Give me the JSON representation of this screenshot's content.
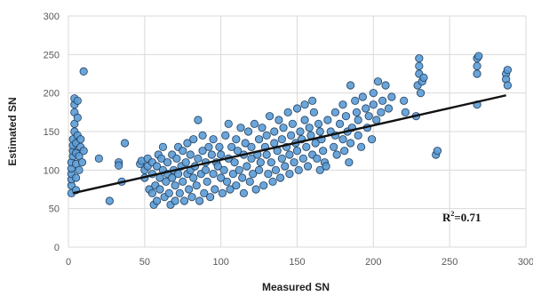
{
  "chart_data": {
    "type": "scatter",
    "title": "",
    "xlabel": "Measured SN",
    "ylabel": "Estimated SN",
    "xlim": [
      0,
      300
    ],
    "ylim": [
      0,
      300
    ],
    "xticks": [
      "0",
      "50",
      "100",
      "150",
      "200",
      "250",
      "300"
    ],
    "yticks": [
      "0",
      "50",
      "100",
      "150",
      "200",
      "250",
      "300"
    ],
    "grid": true,
    "legend": "none",
    "annotation": {
      "base": "R",
      "sup": "2",
      "rest": "=0.71"
    },
    "trendline": {
      "x": [
        3,
        287
      ],
      "y": [
        70,
        197
      ]
    },
    "series": [
      {
        "marker_color": "#5b9bd5",
        "marker_edge": "#1f3d5c",
        "points": [
          [
            2,
            70
          ],
          [
            2,
            80
          ],
          [
            2,
            88
          ],
          [
            2,
            95
          ],
          [
            2,
            102
          ],
          [
            2,
            110
          ],
          [
            3,
            118
          ],
          [
            3,
            125
          ],
          [
            3,
            132
          ],
          [
            3,
            140
          ],
          [
            4,
            150
          ],
          [
            4,
            160
          ],
          [
            4,
            175
          ],
          [
            4,
            185
          ],
          [
            4,
            193
          ],
          [
            5,
            74
          ],
          [
            5,
            90
          ],
          [
            5,
            108
          ],
          [
            5,
            122
          ],
          [
            5,
            135
          ],
          [
            6,
            145
          ],
          [
            6,
            168
          ],
          [
            6,
            190
          ],
          [
            7,
            100
          ],
          [
            7,
            118
          ],
          [
            8,
            130
          ],
          [
            8,
            140
          ],
          [
            9,
            110
          ],
          [
            10,
            228
          ],
          [
            10,
            125
          ],
          [
            20,
            115
          ],
          [
            27,
            60
          ],
          [
            33,
            110
          ],
          [
            33,
            106
          ],
          [
            35,
            85
          ],
          [
            37,
            135
          ],
          [
            47,
            108
          ],
          [
            48,
            112
          ],
          [
            50,
            100
          ],
          [
            50,
            90
          ],
          [
            52,
            105
          ],
          [
            52,
            115
          ],
          [
            53,
            75
          ],
          [
            55,
            70
          ],
          [
            55,
            95
          ],
          [
            55,
            110
          ],
          [
            56,
            55
          ],
          [
            57,
            80
          ],
          [
            58,
            60
          ],
          [
            58,
            105
          ],
          [
            59,
            120
          ],
          [
            60,
            75
          ],
          [
            60,
            90
          ],
          [
            61,
            115
          ],
          [
            62,
            130
          ],
          [
            62,
            100
          ],
          [
            63,
            65
          ],
          [
            64,
            85
          ],
          [
            65,
            95
          ],
          [
            65,
            110
          ],
          [
            66,
            70
          ],
          [
            67,
            55
          ],
          [
            68,
            90
          ],
          [
            68,
            120
          ],
          [
            69,
            100
          ],
          [
            70,
            80
          ],
          [
            70,
            60
          ],
          [
            71,
            115
          ],
          [
            72,
            95
          ],
          [
            72,
            130
          ],
          [
            73,
            70
          ],
          [
            74,
            105
          ],
          [
            75,
            85
          ],
          [
            75,
            125
          ],
          [
            76,
            60
          ],
          [
            77,
            110
          ],
          [
            78,
            95
          ],
          [
            78,
            135
          ],
          [
            79,
            75
          ],
          [
            80,
            100
          ],
          [
            80,
            120
          ],
          [
            81,
            65
          ],
          [
            82,
            90
          ],
          [
            82,
            140
          ],
          [
            83,
            105
          ],
          [
            84,
            80
          ],
          [
            85,
            115
          ],
          [
            85,
            165
          ],
          [
            86,
            60
          ],
          [
            87,
            95
          ],
          [
            88,
            125
          ],
          [
            88,
            145
          ],
          [
            89,
            70
          ],
          [
            90,
            100
          ],
          [
            90,
            110
          ],
          [
            91,
            85
          ],
          [
            92,
            130
          ],
          [
            93,
            65
          ],
          [
            94,
            120
          ],
          [
            95,
            95
          ],
          [
            95,
            140
          ],
          [
            96,
            75
          ],
          [
            97,
            110
          ],
          [
            98,
            105
          ],
          [
            99,
            130
          ],
          [
            100,
            90
          ],
          [
            100,
            120
          ],
          [
            101,
            70
          ],
          [
            102,
            100
          ],
          [
            103,
            145
          ],
          [
            104,
            85
          ],
          [
            105,
            115
          ],
          [
            105,
            160
          ],
          [
            106,
            75
          ],
          [
            107,
            130
          ],
          [
            108,
            95
          ],
          [
            109,
            110
          ],
          [
            110,
            140
          ],
          [
            110,
            80
          ],
          [
            111,
            125
          ],
          [
            112,
            100
          ],
          [
            113,
            155
          ],
          [
            114,
            90
          ],
          [
            115,
            120
          ],
          [
            115,
            70
          ],
          [
            116,
            135
          ],
          [
            117,
            105
          ],
          [
            118,
            150
          ],
          [
            119,
            85
          ],
          [
            120,
            115
          ],
          [
            120,
            130
          ],
          [
            121,
            95
          ],
          [
            122,
            160
          ],
          [
            123,
            75
          ],
          [
            124,
            120
          ],
          [
            125,
            140
          ],
          [
            125,
            100
          ],
          [
            126,
            110
          ],
          [
            127,
            155
          ],
          [
            128,
            80
          ],
          [
            129,
            130
          ],
          [
            130,
            120
          ],
          [
            130,
            145
          ],
          [
            131,
            95
          ],
          [
            132,
            170
          ],
          [
            133,
            110
          ],
          [
            134,
            85
          ],
          [
            135,
            135
          ],
          [
            135,
            150
          ],
          [
            136,
            100
          ],
          [
            137,
            125
          ],
          [
            138,
            165
          ],
          [
            139,
            90
          ],
          [
            140,
            140
          ],
          [
            140,
            115
          ],
          [
            141,
            155
          ],
          [
            142,
            105
          ],
          [
            143,
            130
          ],
          [
            144,
            175
          ],
          [
            145,
            120
          ],
          [
            145,
            95
          ],
          [
            146,
            145
          ],
          [
            147,
            160
          ],
          [
            148,
            110
          ],
          [
            149,
            135
          ],
          [
            150,
            125
          ],
          [
            150,
            180
          ],
          [
            151,
            100
          ],
          [
            152,
            150
          ],
          [
            153,
            140
          ],
          [
            154,
            115
          ],
          [
            155,
            165
          ],
          [
            155,
            185
          ],
          [
            156,
            130
          ],
          [
            157,
            105
          ],
          [
            158,
            155
          ],
          [
            159,
            145
          ],
          [
            160,
            120
          ],
          [
            160,
            190
          ],
          [
            161,
            175
          ],
          [
            162,
            135
          ],
          [
            163,
            115
          ],
          [
            164,
            160
          ],
          [
            165,
            150
          ],
          [
            165,
            100
          ],
          [
            166,
            140
          ],
          [
            167,
            125
          ],
          [
            168,
            110
          ],
          [
            169,
            105
          ],
          [
            170,
            165
          ],
          [
            172,
            150
          ],
          [
            174,
            130
          ],
          [
            175,
            145
          ],
          [
            175,
            175
          ],
          [
            176,
            120
          ],
          [
            178,
            160
          ],
          [
            180,
            140
          ],
          [
            180,
            185
          ],
          [
            181,
            125
          ],
          [
            182,
            170
          ],
          [
            183,
            150
          ],
          [
            184,
            110
          ],
          [
            185,
            135
          ],
          [
            185,
            210
          ],
          [
            186,
            155
          ],
          [
            188,
            190
          ],
          [
            189,
            175
          ],
          [
            190,
            145
          ],
          [
            190,
            165
          ],
          [
            192,
            130
          ],
          [
            193,
            195
          ],
          [
            195,
            180
          ],
          [
            196,
            155
          ],
          [
            197,
            170
          ],
          [
            199,
            140
          ],
          [
            200,
            200
          ],
          [
            200,
            185
          ],
          [
            202,
            165
          ],
          [
            203,
            215
          ],
          [
            205,
            175
          ],
          [
            206,
            190
          ],
          [
            208,
            210
          ],
          [
            210,
            180
          ],
          [
            212,
            195
          ],
          [
            220,
            190
          ],
          [
            221,
            175
          ],
          [
            228,
            170
          ],
          [
            229,
            210
          ],
          [
            230,
            245
          ],
          [
            230,
            235
          ],
          [
            230,
            225
          ],
          [
            231,
            200
          ],
          [
            232,
            215
          ],
          [
            233,
            220
          ],
          [
            241,
            120
          ],
          [
            242,
            125
          ],
          [
            268,
            185
          ],
          [
            268,
            225
          ],
          [
            268,
            235
          ],
          [
            268,
            245
          ],
          [
            269,
            248
          ],
          [
            287,
            225
          ],
          [
            287,
            218
          ],
          [
            288,
            230
          ],
          [
            288,
            210
          ]
        ]
      }
    ]
  }
}
